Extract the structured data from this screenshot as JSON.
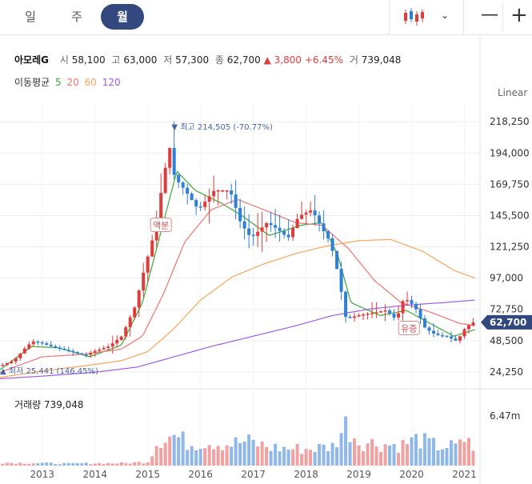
{
  "tabs": [
    {
      "label": "일",
      "active": false
    },
    {
      "label": "주",
      "active": false
    },
    {
      "label": "월",
      "active": true
    }
  ],
  "toolbar": {
    "chart_type_icon": "candlestick-icon",
    "dropdown_icon": "chevron-down-icon",
    "zoom_out": "—",
    "zoom_in": "+"
  },
  "stock": {
    "name": "아모레G",
    "open_label": "시",
    "open": "58,100",
    "high_label": "고",
    "high": "63,000",
    "low_label": "저",
    "low": "57,300",
    "close_label": "종",
    "close": "62,700",
    "change": "▲ 3,800",
    "change_pct": "+6.45%",
    "volume_label": "거",
    "volume": "739,048"
  },
  "ma_legend": {
    "label": "이동평균",
    "ma5": "5",
    "ma20": "20",
    "ma60": "60",
    "ma120": "120"
  },
  "scale_mode": "Linear",
  "colors": {
    "up": "#e03c3c",
    "down": "#2f7fd6",
    "ma5": "#3aaa35",
    "ma20": "#f07272",
    "ma60": "#f5a55a",
    "ma120": "#9b5de5",
    "price_tag": "#33487e",
    "vol_up": "#f2a1a1",
    "vol_down": "#8fb7ea"
  },
  "volume_panel": {
    "title": "거래량 739,048",
    "axis_label": "6.47m"
  },
  "chart_data": {
    "type": "candlestick",
    "period": "monthly",
    "y_ticks": [
      24250,
      48500,
      72750,
      97000,
      121250,
      145500,
      169750,
      194000,
      218250
    ],
    "y_tick_labels": [
      "24,250",
      "48,500",
      "72,750",
      "97,000",
      "121,250",
      "145,500",
      "169,750",
      "194,000",
      "218,250"
    ],
    "ylim": [
      18000,
      232000
    ],
    "x_labels": [
      "2013",
      "2014",
      "2015",
      "2016",
      "2017",
      "2018",
      "2019",
      "2020",
      "2021"
    ],
    "x_range": [
      2012.2,
      2021.25
    ],
    "current_price": {
      "value": 62700,
      "label": "62,700"
    },
    "annotations": [
      {
        "text": "▼ 최고 214,505 (-70.77%)",
        "t": 2015.45,
        "value": 214505
      },
      {
        "text": "▲ 최저 25,441 (146.45%)",
        "t": 2012.2,
        "value": 25441
      },
      {
        "text": "액분",
        "t": 2015.25,
        "value": 138000
      },
      {
        "text": "유증",
        "t": 2019.95,
        "value": 58000
      }
    ],
    "price_path": [
      [
        2012.25,
        29000
      ],
      [
        2012.5,
        33000
      ],
      [
        2012.7,
        42000
      ],
      [
        2012.85,
        48000
      ],
      [
        2013.0,
        47000
      ],
      [
        2013.3,
        43000
      ],
      [
        2013.6,
        40000
      ],
      [
        2013.85,
        37000
      ],
      [
        2014.0,
        40000
      ],
      [
        2014.3,
        44000
      ],
      [
        2014.55,
        52000
      ],
      [
        2014.8,
        75000
      ],
      [
        2014.95,
        100000
      ],
      [
        2015.15,
        130000
      ],
      [
        2015.3,
        165000
      ],
      [
        2015.45,
        200000
      ],
      [
        2015.55,
        175000
      ],
      [
        2015.75,
        165000
      ],
      [
        2016.0,
        150000
      ],
      [
        2016.3,
        165000
      ],
      [
        2016.6,
        165000
      ],
      [
        2016.8,
        140000
      ],
      [
        2017.0,
        128000
      ],
      [
        2017.3,
        140000
      ],
      [
        2017.5,
        135000
      ],
      [
        2017.7,
        128000
      ],
      [
        2017.9,
        145000
      ],
      [
        2018.15,
        150000
      ],
      [
        2018.35,
        135000
      ],
      [
        2018.5,
        125000
      ],
      [
        2018.65,
        100000
      ],
      [
        2018.8,
        65000
      ],
      [
        2019.0,
        68000
      ],
      [
        2019.3,
        70000
      ],
      [
        2019.55,
        72000
      ],
      [
        2019.75,
        65000
      ],
      [
        2019.9,
        82000
      ],
      [
        2020.1,
        75000
      ],
      [
        2020.3,
        58000
      ],
      [
        2020.5,
        53000
      ],
      [
        2020.7,
        52000
      ],
      [
        2020.9,
        48000
      ],
      [
        2021.05,
        58000
      ],
      [
        2021.2,
        62700
      ]
    ],
    "volume": {
      "max": 6470000,
      "points": [
        [
          2012.3,
          0.06
        ],
        [
          2013.0,
          0.05
        ],
        [
          2013.5,
          0.04
        ],
        [
          2014.0,
          0.05
        ],
        [
          2014.6,
          0.05
        ],
        [
          2015.0,
          0.08
        ],
        [
          2015.2,
          0.55
        ],
        [
          2015.5,
          0.62
        ],
        [
          2015.8,
          0.45
        ],
        [
          2016.1,
          0.5
        ],
        [
          2016.5,
          0.45
        ],
        [
          2016.9,
          0.5
        ],
        [
          2017.3,
          0.38
        ],
        [
          2017.7,
          0.35
        ],
        [
          2018.1,
          0.35
        ],
        [
          2018.5,
          0.4
        ],
        [
          2018.75,
          0.85
        ],
        [
          2019.0,
          0.5
        ],
        [
          2019.4,
          0.45
        ],
        [
          2019.8,
          0.42
        ],
        [
          2020.1,
          0.55
        ],
        [
          2020.5,
          0.4
        ],
        [
          2020.9,
          0.4
        ],
        [
          2021.1,
          0.65
        ],
        [
          2021.2,
          0.05
        ]
      ]
    },
    "moving_averages": [
      {
        "name": "5",
        "points": [
          [
            2012.2,
            26000
          ],
          [
            2012.8,
            44000
          ],
          [
            2013.3,
            43000
          ],
          [
            2013.9,
            36000
          ],
          [
            2014.5,
            45000
          ],
          [
            2014.9,
            78000
          ],
          [
            2015.2,
            125000
          ],
          [
            2015.55,
            180000
          ],
          [
            2015.9,
            165000
          ],
          [
            2016.4,
            155000
          ],
          [
            2016.8,
            145000
          ],
          [
            2017.3,
            130000
          ],
          [
            2017.9,
            138000
          ],
          [
            2018.3,
            140000
          ],
          [
            2018.6,
            115000
          ],
          [
            2018.85,
            78000
          ],
          [
            2019.4,
            68000
          ],
          [
            2019.9,
            72000
          ],
          [
            2020.3,
            63000
          ],
          [
            2020.8,
            52000
          ],
          [
            2021.2,
            57000
          ]
        ]
      },
      {
        "name": "20",
        "points": [
          [
            2012.2,
            24000
          ],
          [
            2013.0,
            36000
          ],
          [
            2013.8,
            38000
          ],
          [
            2014.5,
            42000
          ],
          [
            2014.9,
            52000
          ],
          [
            2015.3,
            85000
          ],
          [
            2015.7,
            125000
          ],
          [
            2016.2,
            150000
          ],
          [
            2016.7,
            158000
          ],
          [
            2017.2,
            150000
          ],
          [
            2017.8,
            140000
          ],
          [
            2018.3,
            138000
          ],
          [
            2018.8,
            120000
          ],
          [
            2019.3,
            95000
          ],
          [
            2019.8,
            78000
          ],
          [
            2020.4,
            70000
          ],
          [
            2020.9,
            62000
          ],
          [
            2021.2,
            60000
          ]
        ]
      },
      {
        "name": "60",
        "points": [
          [
            2012.2,
            20000
          ],
          [
            2013.0,
            25000
          ],
          [
            2013.8,
            29000
          ],
          [
            2014.5,
            33000
          ],
          [
            2015.0,
            40000
          ],
          [
            2015.5,
            58000
          ],
          [
            2016.0,
            80000
          ],
          [
            2016.6,
            98000
          ],
          [
            2017.2,
            108000
          ],
          [
            2017.8,
            116000
          ],
          [
            2018.4,
            122000
          ],
          [
            2019.0,
            126000
          ],
          [
            2019.6,
            127000
          ],
          [
            2020.2,
            118000
          ],
          [
            2020.8,
            103000
          ],
          [
            2021.2,
            97000
          ]
        ]
      },
      {
        "name": "120",
        "points": [
          [
            2012.2,
            19000
          ],
          [
            2013.0,
            21000
          ],
          [
            2014.0,
            24000
          ],
          [
            2014.8,
            28000
          ],
          [
            2015.5,
            36000
          ],
          [
            2016.2,
            44000
          ],
          [
            2017.0,
            52000
          ],
          [
            2017.8,
            60000
          ],
          [
            2018.5,
            68000
          ],
          [
            2019.2,
            73000
          ],
          [
            2019.9,
            76000
          ],
          [
            2020.6,
            78000
          ],
          [
            2021.2,
            80000
          ]
        ]
      }
    ]
  }
}
